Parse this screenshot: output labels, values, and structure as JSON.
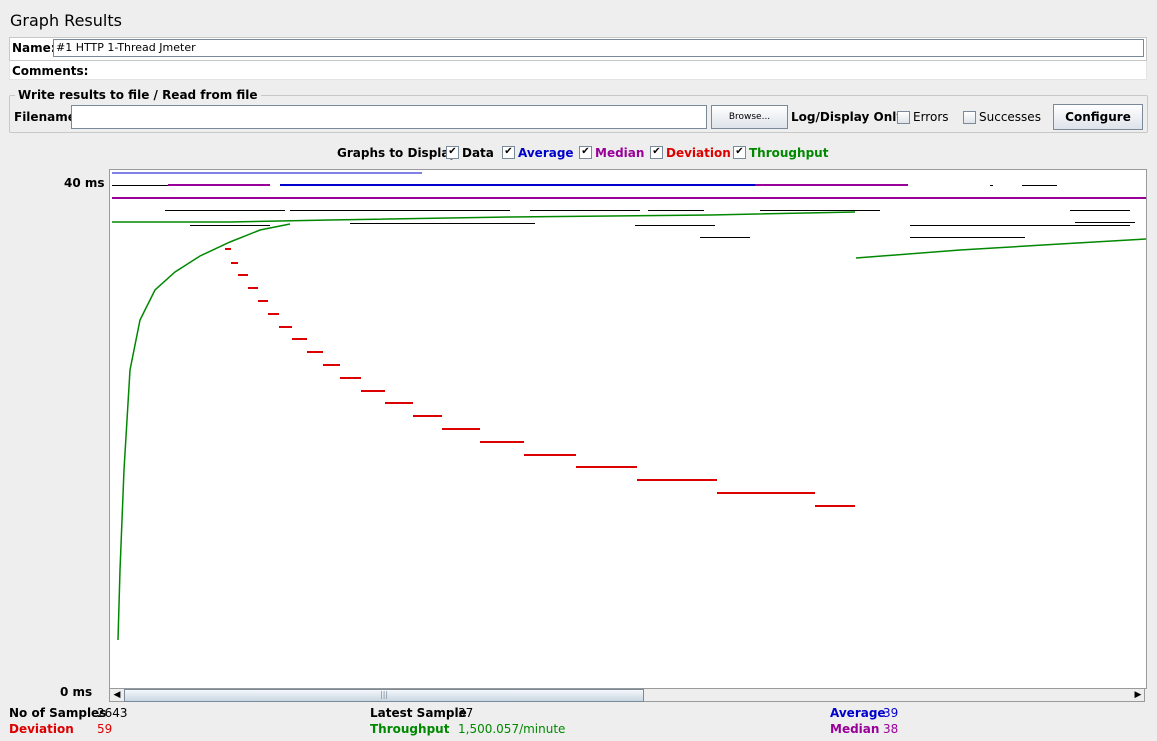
{
  "window": {
    "title": "Graph Results"
  },
  "name_field": {
    "label": "Name:",
    "value": "#1 HTTP 1-Thread Jmeter"
  },
  "comments_field": {
    "label": "Comments:",
    "value": ""
  },
  "file_panel": {
    "legend": "Write results to file / Read from file",
    "filename_label": "Filename",
    "filename_value": "",
    "browse_label": "Browse...",
    "log_display_label": "Log/Display Only:",
    "errors_label": "Errors",
    "errors_checked": false,
    "successes_label": "Successes",
    "successes_checked": false,
    "configure_label": "Configure"
  },
  "graphs_to_display": {
    "label": "Graphs to Display",
    "options": [
      {
        "label": "Data",
        "checked": true,
        "color": "#000000"
      },
      {
        "label": "Average",
        "checked": true,
        "color": "#0000cc"
      },
      {
        "label": "Median",
        "checked": true,
        "color": "#990099"
      },
      {
        "label": "Deviation",
        "checked": true,
        "color": "#dd0000"
      },
      {
        "label": "Throughput",
        "checked": true,
        "color": "#008800"
      }
    ],
    "check_glyph": "✔"
  },
  "chart_data": {
    "type": "line",
    "y_labels": {
      "top": "40 ms",
      "bottom": "0 ms"
    },
    "ylim": [
      0,
      40
    ],
    "series": [
      {
        "name": "Data",
        "color": "#000000"
      },
      {
        "name": "Average",
        "color": "#0000cc"
      },
      {
        "name": "Median",
        "color": "#990099"
      },
      {
        "name": "Deviation",
        "color": "#dd0000"
      },
      {
        "name": "Throughput",
        "color": "#008800"
      }
    ]
  },
  "stats": {
    "samples_label": "No of Samples",
    "samples_value": "2643",
    "deviation_label": "Deviation",
    "deviation_value": "59",
    "latest_label": "Latest Sample",
    "latest_value": "37",
    "throughput_label": "Throughput",
    "throughput_value": "1,500.057/minute",
    "average_label": "Average",
    "average_value": "39",
    "median_label": "Median",
    "median_value": "38"
  },
  "colors": {
    "data": "#000000",
    "average": "#0000cc",
    "median": "#990099",
    "deviation": "#dd0000",
    "throughput": "#008800"
  }
}
